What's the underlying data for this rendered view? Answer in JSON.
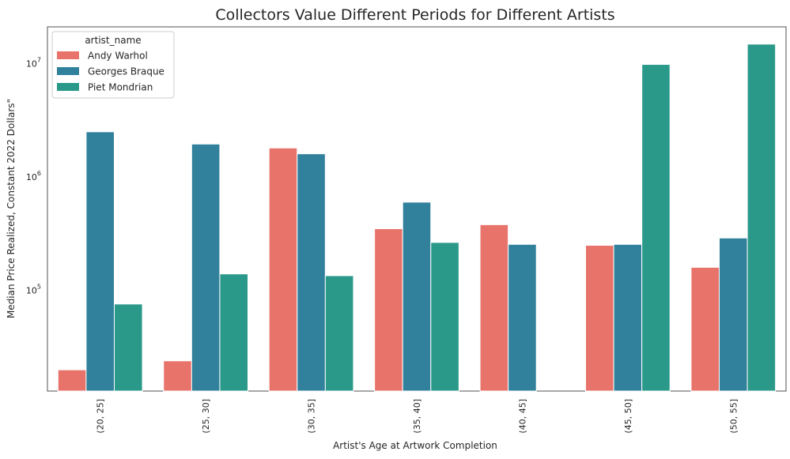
{
  "chart_data": {
    "type": "bar",
    "title": "Collectors Value Different Periods for Different Artists",
    "xlabel": "Artist's Age at Artwork Completion",
    "ylabel": "Median Price Realized, Constant 2022 Dollars\"",
    "yscale": "log",
    "ylim": [
      13000,
      21000000
    ],
    "yticks": [
      {
        "value": 100000,
        "base": "10",
        "exp": "5"
      },
      {
        "value": 1000000,
        "base": "10",
        "exp": "6"
      },
      {
        "value": 10000000,
        "base": "10",
        "exp": "7"
      }
    ],
    "categories": [
      "(20, 25]",
      "(25, 30]",
      "(30, 35]",
      "(35, 40]",
      "(40, 45]",
      "(45, 50]",
      "(50, 55]"
    ],
    "legend": {
      "title": "artist_name",
      "position": "top-left"
    },
    "grid": false,
    "series": [
      {
        "name": "Andy Warhol",
        "color": "#E8736A",
        "values": [
          20000,
          24000,
          1800000,
          350000,
          380000,
          250000,
          160000
        ]
      },
      {
        "name": "Georges Braque",
        "color": "#31809C",
        "values": [
          2500000,
          1950000,
          1600000,
          600000,
          255000,
          255000,
          290000
        ]
      },
      {
        "name": "Piet Mondrian",
        "color": "#2A998A",
        "values": [
          76000,
          140000,
          135000,
          265000,
          null,
          9800000,
          14800000
        ]
      }
    ]
  }
}
